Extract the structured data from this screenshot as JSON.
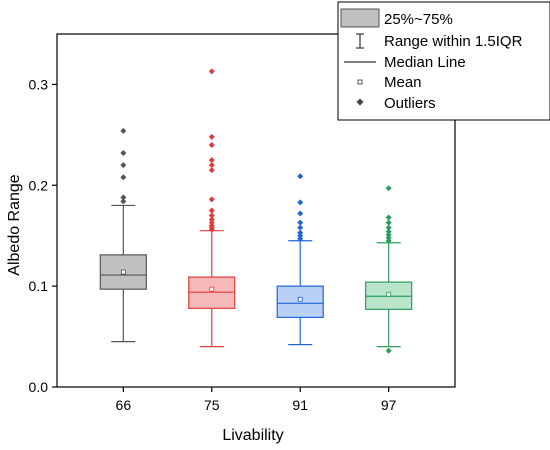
{
  "chart_data": {
    "type": "box",
    "xlabel": "Livability",
    "ylabel": "Albedo Range",
    "ylim": [
      0,
      0.35
    ],
    "yticks": [
      0.0,
      0.1,
      0.2,
      0.3
    ],
    "ytick_labels": [
      "0.0",
      "0.1",
      "0.2",
      "0.3"
    ],
    "grid": false,
    "legend_position": "top-right",
    "legend": {
      "box": "25%~75%",
      "whisker": "Range within 1.5IQR",
      "median": "Median Line",
      "mean": "Mean",
      "outliers": "Outliers"
    },
    "categories": [
      "66",
      "75",
      "91",
      "97"
    ],
    "boxes": [
      {
        "category": "66",
        "color": "#555555",
        "fill": "#c0c0c0",
        "whisker_low": 0.045,
        "q1": 0.097,
        "median": 0.111,
        "q3": 0.131,
        "whisker_high": 0.18,
        "mean": 0.114,
        "outliers": [
          0.184,
          0.188,
          0.208,
          0.22,
          0.232,
          0.254
        ]
      },
      {
        "category": "75",
        "color": "#e03c3c",
        "fill": "#f6b8b8",
        "whisker_low": 0.04,
        "q1": 0.078,
        "median": 0.094,
        "q3": 0.109,
        "whisker_high": 0.155,
        "mean": 0.097,
        "outliers": [
          0.156,
          0.158,
          0.16,
          0.163,
          0.166,
          0.17,
          0.175,
          0.186,
          0.215,
          0.22,
          0.225,
          0.24,
          0.248,
          0.313
        ]
      },
      {
        "category": "91",
        "color": "#1e66d8",
        "fill": "#b8d0f4",
        "whisker_low": 0.042,
        "q1": 0.069,
        "median": 0.083,
        "q3": 0.1,
        "whisker_high": 0.145,
        "mean": 0.087,
        "outliers": [
          0.147,
          0.15,
          0.153,
          0.158,
          0.163,
          0.172,
          0.183,
          0.209
        ]
      },
      {
        "category": "97",
        "color": "#2a9d5c",
        "fill": "#b9e6cb",
        "whisker_low": 0.04,
        "q1": 0.077,
        "median": 0.09,
        "q3": 0.104,
        "whisker_high": 0.143,
        "mean": 0.092,
        "outliers": [
          0.036,
          0.145,
          0.148,
          0.151,
          0.154,
          0.158,
          0.163,
          0.168,
          0.197
        ]
      }
    ]
  }
}
